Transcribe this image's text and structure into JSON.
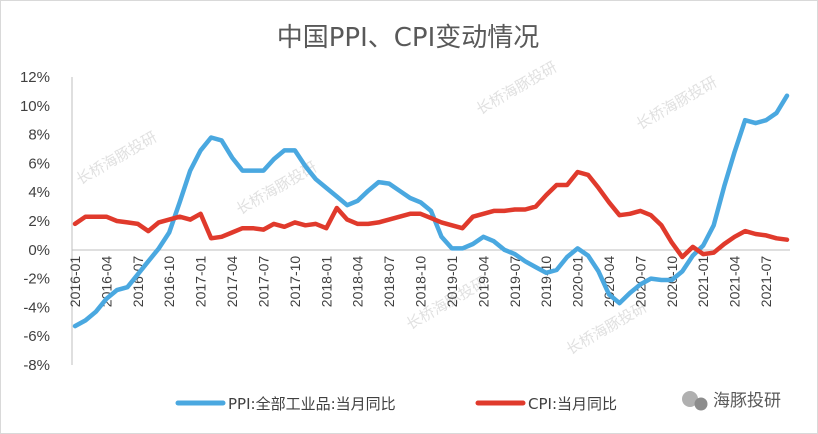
{
  "chart_data": {
    "type": "line",
    "title": "中国PPI、CPI变动情况",
    "y_tick_labels": [
      "12%",
      "10%",
      "8%",
      "6%",
      "4%",
      "2%",
      "0%",
      "-2%",
      "-4%",
      "-6%",
      "-8%"
    ],
    "ylim": [
      -8,
      12
    ],
    "x_tick_labels": [
      "2016-01",
      "2016-04",
      "2016-07",
      "2016-10",
      "2017-01",
      "2017-04",
      "2017-07",
      "2017-10",
      "2018-01",
      "2018-04",
      "2018-07",
      "2018-10",
      "2019-01",
      "2019-04",
      "2019-07",
      "2019-10",
      "2020-01",
      "2020-04",
      "2020-07",
      "2020-10",
      "2021-01",
      "2021-04",
      "2021-07"
    ],
    "x": [
      "2016-01",
      "2016-02",
      "2016-03",
      "2016-04",
      "2016-05",
      "2016-06",
      "2016-07",
      "2016-08",
      "2016-09",
      "2016-10",
      "2016-11",
      "2016-12",
      "2017-01",
      "2017-02",
      "2017-03",
      "2017-04",
      "2017-05",
      "2017-06",
      "2017-07",
      "2017-08",
      "2017-09",
      "2017-10",
      "2017-11",
      "2017-12",
      "2018-01",
      "2018-02",
      "2018-03",
      "2018-04",
      "2018-05",
      "2018-06",
      "2018-07",
      "2018-08",
      "2018-09",
      "2018-10",
      "2018-11",
      "2018-12",
      "2019-01",
      "2019-02",
      "2019-03",
      "2019-04",
      "2019-05",
      "2019-06",
      "2019-07",
      "2019-08",
      "2019-09",
      "2019-10",
      "2019-11",
      "2019-12",
      "2020-01",
      "2020-02",
      "2020-03",
      "2020-04",
      "2020-05",
      "2020-06",
      "2020-07",
      "2020-08",
      "2020-09",
      "2020-10",
      "2020-11",
      "2020-12",
      "2021-01",
      "2021-02",
      "2021-03",
      "2021-04",
      "2021-05",
      "2021-06",
      "2021-07",
      "2021-08",
      "2021-09"
    ],
    "series": [
      {
        "name": "PPI:全部工业品:当月同比",
        "color": "#4aa8e0",
        "values": [
          -5.3,
          -4.9,
          -4.3,
          -3.4,
          -2.8,
          -2.6,
          -1.7,
          -0.8,
          0.1,
          1.2,
          3.3,
          5.5,
          6.9,
          7.8,
          7.6,
          6.4,
          5.5,
          5.5,
          5.5,
          6.3,
          6.9,
          6.9,
          5.8,
          4.9,
          4.3,
          3.7,
          3.1,
          3.4,
          4.1,
          4.7,
          4.6,
          4.1,
          3.6,
          3.3,
          2.7,
          0.9,
          0.1,
          0.1,
          0.4,
          0.9,
          0.6,
          0.0,
          -0.3,
          -0.8,
          -1.2,
          -1.6,
          -1.4,
          -0.5,
          0.1,
          -0.4,
          -1.5,
          -3.1,
          -3.7,
          -3.0,
          -2.4,
          -2.0,
          -2.1,
          -2.1,
          -1.5,
          -0.4,
          0.3,
          1.7,
          4.4,
          6.8,
          9.0,
          8.8,
          9.0,
          9.5,
          10.7
        ]
      },
      {
        "name": "CPI:当月同比",
        "color": "#e03a2c",
        "values": [
          1.8,
          2.3,
          2.3,
          2.3,
          2.0,
          1.9,
          1.8,
          1.3,
          1.9,
          2.1,
          2.3,
          2.1,
          2.5,
          0.8,
          0.9,
          1.2,
          1.5,
          1.5,
          1.4,
          1.8,
          1.6,
          1.9,
          1.7,
          1.8,
          1.5,
          2.9,
          2.1,
          1.8,
          1.8,
          1.9,
          2.1,
          2.3,
          2.5,
          2.5,
          2.2,
          1.9,
          1.7,
          1.5,
          2.3,
          2.5,
          2.7,
          2.7,
          2.8,
          2.8,
          3.0,
          3.8,
          4.5,
          4.5,
          5.4,
          5.2,
          4.3,
          3.3,
          2.4,
          2.5,
          2.7,
          2.4,
          1.7,
          0.5,
          -0.5,
          0.2,
          -0.3,
          -0.2,
          0.4,
          0.9,
          1.3,
          1.1,
          1.0,
          0.8,
          0.7
        ]
      }
    ],
    "legend_position": "bottom",
    "grid": false
  },
  "watermark": {
    "channel": "海豚投研",
    "repeated": "长桥海豚投研"
  }
}
